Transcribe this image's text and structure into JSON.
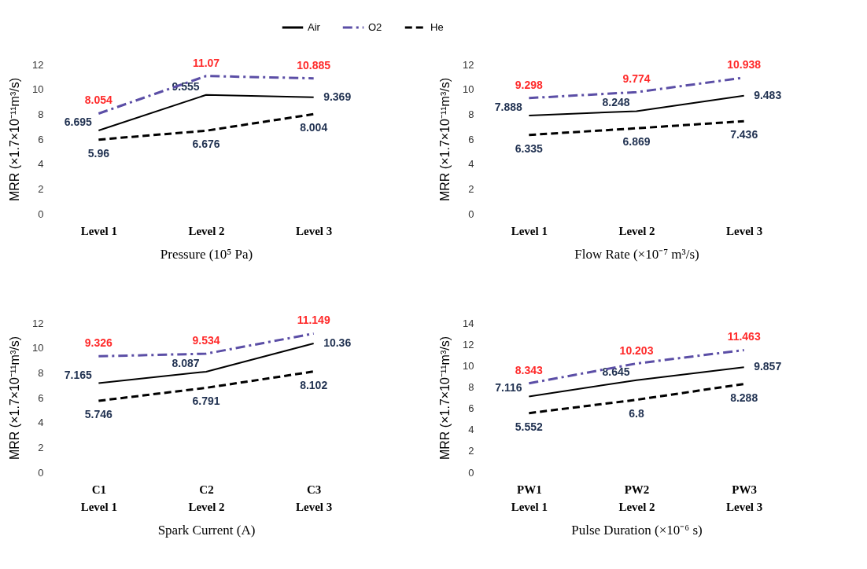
{
  "chart_data": [
    {
      "type": "line",
      "xlabel": "Pressure (10⁵ Pa)",
      "ylabel": "MRR (×1.7×10⁻¹¹m³/s)",
      "categories": [
        "Level 1",
        "Level 2",
        "Level 3"
      ],
      "ylim": [
        0,
        12
      ],
      "yticks": [
        0,
        2,
        4,
        6,
        8,
        10,
        12
      ],
      "grid": false,
      "legend": false,
      "data_labels": true,
      "marker": "none",
      "series": [
        {
          "color": "#000000",
          "line_style": "solid",
          "values": [
            6.695,
            9.555,
            9.369
          ]
        },
        {
          "color": "#5b4ea6",
          "line_style": "dashdot",
          "values": [
            8.054,
            11.07,
            10.885
          ]
        },
        {
          "color": "#000000",
          "line_style": "dashed",
          "values": [
            5.96,
            6.676,
            8.004
          ]
        }
      ]
    },
    {
      "type": "line",
      "xlabel": "Flow Rate (×10⁻⁷ m³/s)",
      "ylabel": "MRR (×1.7×10⁻¹¹m³/s)",
      "categories": [
        "Level 1",
        "Level 2",
        "Level 3"
      ],
      "ylim": [
        0,
        12
      ],
      "yticks": [
        0,
        2,
        4,
        6,
        8,
        10,
        12
      ],
      "grid": false,
      "legend": false,
      "data_labels": true,
      "marker": "none",
      "series": [
        {
          "color": "#000000",
          "line_style": "solid",
          "values": [
            7.888,
            8.248,
            9.483
          ]
        },
        {
          "color": "#5b4ea6",
          "line_style": "dashdot",
          "values": [
            9.298,
            9.774,
            10.938
          ]
        },
        {
          "color": "#000000",
          "line_style": "dashed",
          "values": [
            6.335,
            6.869,
            7.436
          ]
        }
      ]
    },
    {
      "type": "line",
      "xlabel": "Spark Current (A)",
      "ylabel": "MRR (×1.7×10⁻¹¹m³/s)",
      "categories": [
        "C1\nLevel 1",
        "C2\nLevel 2",
        "C3\nLevel 3"
      ],
      "ylim": [
        0,
        12
      ],
      "yticks": [
        0,
        2,
        4,
        6,
        8,
        10,
        12
      ],
      "grid": false,
      "legend": "top",
      "data_labels": true,
      "marker": "none",
      "series": [
        {
          "name": "Air",
          "color": "#000000",
          "line_style": "solid",
          "values": [
            7.165,
            8.087,
            10.36
          ]
        },
        {
          "name": "O2",
          "color": "#5b4ea6",
          "line_style": "dashdot",
          "values": [
            9.326,
            9.534,
            11.149
          ]
        },
        {
          "name": "He",
          "color": "#000000",
          "line_style": "dashed",
          "values": [
            5.746,
            6.791,
            8.102
          ]
        }
      ]
    },
    {
      "type": "line",
      "xlabel": "Pulse Duration (×10⁻⁶ s)",
      "ylabel": "MRR (×1.7×10⁻¹¹m³/s)",
      "categories": [
        "PW1\nLevel 1",
        "PW2\nLevel 2",
        "PW3\nLevel 3"
      ],
      "ylim": [
        0,
        14
      ],
      "yticks": [
        0,
        2,
        4,
        6,
        8,
        10,
        12,
        14
      ],
      "grid": false,
      "legend": false,
      "data_labels": true,
      "marker": "none",
      "series": [
        {
          "color": "#000000",
          "line_style": "solid",
          "values": [
            7.116,
            8.645,
            9.857
          ]
        },
        {
          "color": "#5b4ea6",
          "line_style": "dashdot",
          "values": [
            8.343,
            10.203,
            11.463
          ]
        },
        {
          "color": "#000000",
          "line_style": "dashed",
          "values": [
            5.552,
            6.8,
            8.288
          ]
        }
      ]
    }
  ]
}
